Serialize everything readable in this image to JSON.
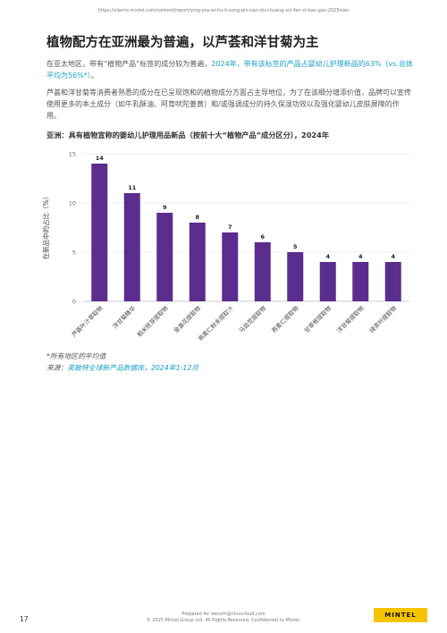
{
  "url": "https://clients.mintel.com/content/report/ying-you-er-hu-li-yong-pin-nan-du-chuang-xin-fen-xi-bao-gao-2025nian",
  "title": "植物配方在亚洲最为普遍，以芦荟和洋甘菊为主",
  "para1_start": "在亚太地区，带有“植物产品”标签的成分较为普遍，",
  "para1_highlight": "2024年，带有该标签的产品占婴幼儿护理新品的63%（vs.总体平均为56%*）",
  "para1_end": "。",
  "para2": "芦荟和洋甘菊等消费者熟悉的成分在已呈现饱和的植物成分方面占主导地位，为了在该细分增添价值，品牌可以宣传使用更多的本土成分（如牛乳酥油、阿育吠陀姜黄）和/或强调成分的持久保湿功效以及强化婴幼儿皮肤屏障的作用。",
  "chart_title": "亚洲：具有植物宣称的婴幼儿护理用品新品（按前十大“植物产品”成分区分），2024年",
  "chart_data": {
    "type": "bar",
    "categories": [
      "芦荟叶汁萃取物",
      "洋甘菊精华",
      "稻米胚芽提取物",
      "金盏花提取物",
      "燕麦仁粉末提取汁",
      "马齿苋提取物",
      "燕麦仁提取物",
      "甘草根提取物",
      "洋甘菊提取物",
      "绿茶叶提取物"
    ],
    "values": [
      14,
      11,
      9,
      8,
      7,
      6,
      5,
      4,
      4,
      4
    ],
    "ylabel": "在新品中的占比（%）",
    "yticks": [
      0,
      5,
      10,
      15
    ],
    "ylim": [
      0,
      15
    ],
    "bar_color": "#5b2d8e",
    "grid": true
  },
  "note": "*所有地区的平均值",
  "source_label": "来源：",
  "source_name": "英敏特全球新产品数据库，2024年1-12月",
  "page_number": "17",
  "footer_line1": "Prepared for wenzm@nhuscloud.com",
  "footer_line2": "© 2025 Mintel Group Ltd. All Rights Reserved. Confidential to Mintel.",
  "logo_text": "MINTEL",
  "colors": {
    "accent": "#1aa0c8",
    "bar": "#5b2d8e",
    "logo_bg": "#f5c400"
  }
}
